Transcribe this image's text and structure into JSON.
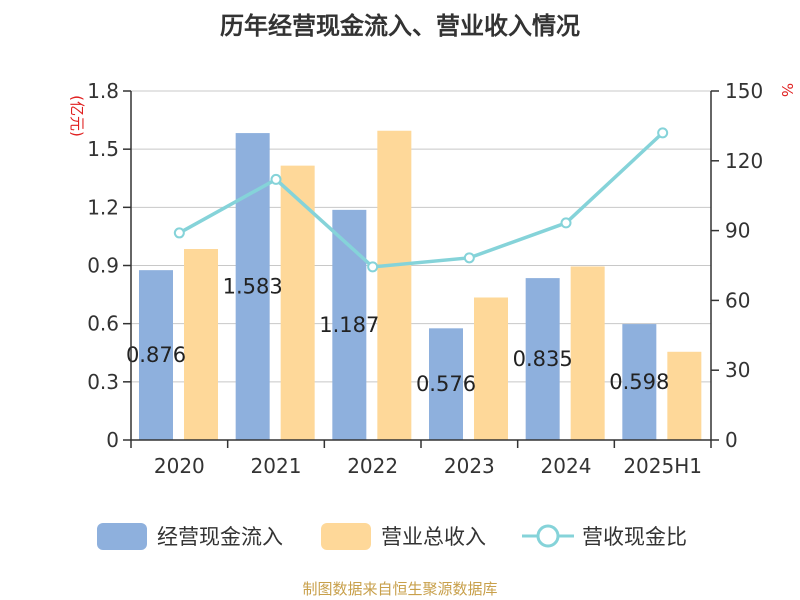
{
  "chart_data": {
    "type": "bar",
    "title": "历年经营现金流入、营业收入情况",
    "categories": [
      "2020",
      "2021",
      "2022",
      "2023",
      "2024",
      "2025H1"
    ],
    "series": [
      {
        "name": "经营现金流入",
        "kind": "bar",
        "axis": "left",
        "color": "#8eb0dd",
        "values": [
          0.876,
          1.583,
          1.187,
          0.576,
          0.835,
          0.598
        ],
        "labels": [
          "0.876",
          "1.583",
          "1.187",
          "0.576",
          "0.835",
          "0.598"
        ]
      },
      {
        "name": "营业总收入",
        "kind": "bar",
        "axis": "left",
        "color": "#fed899",
        "values": [
          0.985,
          1.415,
          1.595,
          0.735,
          0.895,
          0.455
        ]
      },
      {
        "name": "营收现金比",
        "kind": "line",
        "axis": "right",
        "color": "#85d3d9",
        "values": [
          89,
          112,
          74.4,
          78.3,
          93.3,
          132
        ]
      }
    ],
    "left_axis": {
      "label": "(亿元)",
      "ylim": [
        0,
        1.8
      ],
      "ticks": [
        "0",
        "0.3",
        "0.6",
        "0.9",
        "1.2",
        "1.5",
        "1.8"
      ]
    },
    "right_axis": {
      "label": "%",
      "ylim": [
        0,
        150
      ],
      "ticks": [
        "0",
        "30",
        "60",
        "90",
        "120",
        "150"
      ]
    },
    "grid": true,
    "legend_position": "bottom"
  },
  "source": "制图数据来自恒生聚源数据库"
}
